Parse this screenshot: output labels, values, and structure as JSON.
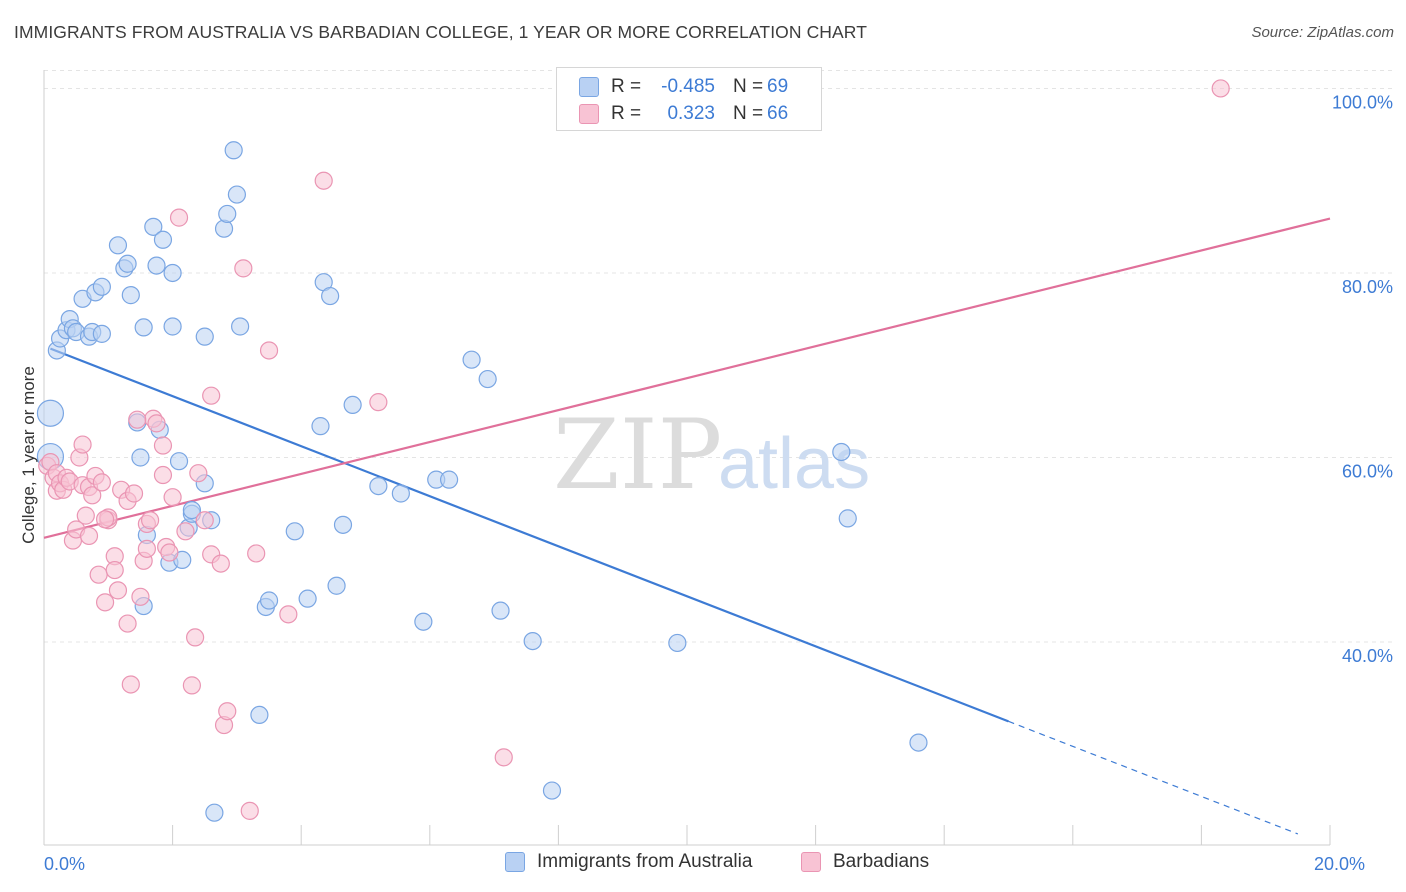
{
  "title": "IMMIGRANTS FROM AUSTRALIA VS BARBADIAN COLLEGE, 1 YEAR OR MORE CORRELATION CHART",
  "source": "Source: ZipAtlas.com",
  "watermark": {
    "zip": "ZIP",
    "atlas": "atlas"
  },
  "colors": {
    "blue": "#3d7bd4",
    "blue_fill": "#b9d1f3",
    "pink": "#e0709a",
    "pink_fill": "#f8c3d4",
    "grid": "#e4e4e4"
  },
  "legend": [
    {
      "r_label": "R =",
      "r_value": "-0.485",
      "n_label": "N =",
      "n_value": "69"
    },
    {
      "r_label": "R =",
      "r_value": "0.323",
      "n_label": "N =",
      "n_value": "66"
    }
  ],
  "series_labels": [
    "Immigrants from Australia",
    "Barbadians"
  ],
  "chart_data": {
    "type": "scatter",
    "xlabel": "",
    "ylabel": "College, 1 year or more",
    "xlim": [
      0,
      20
    ],
    "ylim": [
      18,
      102
    ],
    "x_tick_labels": [
      {
        "value": 0,
        "label": "0.0%"
      },
      {
        "value": 20,
        "label": "20.0%"
      }
    ],
    "y_tick_labels": [
      {
        "value": 40,
        "label": "40.0%"
      },
      {
        "value": 60,
        "label": "60.0%"
      },
      {
        "value": 80,
        "label": "80.0%"
      },
      {
        "value": 100,
        "label": "100.0%"
      }
    ],
    "grid": true,
    "series": [
      {
        "name": "Immigrants from Australia",
        "color": "#3d7bd4",
        "trend": {
          "x0": 0.1,
          "y0": 71.8,
          "x1": 15.0,
          "y1": 31.4,
          "dash_to_x": 19.5,
          "dash_to_y": 19.2
        },
        "points": [
          [
            0.1,
            64.8
          ],
          [
            0.1,
            60.1
          ],
          [
            0.2,
            71.6
          ],
          [
            0.25,
            72.9
          ],
          [
            0.35,
            73.8
          ],
          [
            0.4,
            75.0
          ],
          [
            0.45,
            74.0
          ],
          [
            0.5,
            73.6
          ],
          [
            0.6,
            77.2
          ],
          [
            0.7,
            73.1
          ],
          [
            0.75,
            73.6
          ],
          [
            0.8,
            77.9
          ],
          [
            0.9,
            73.4
          ],
          [
            0.9,
            78.5
          ],
          [
            1.15,
            83.0
          ],
          [
            1.25,
            80.5
          ],
          [
            1.3,
            81.0
          ],
          [
            1.35,
            77.6
          ],
          [
            1.45,
            63.8
          ],
          [
            1.6,
            51.6
          ],
          [
            1.5,
            60.0
          ],
          [
            1.55,
            43.9
          ],
          [
            1.55,
            74.1
          ],
          [
            1.7,
            85.0
          ],
          [
            1.75,
            80.8
          ],
          [
            1.8,
            63.0
          ],
          [
            1.85,
            83.6
          ],
          [
            1.95,
            48.6
          ],
          [
            2.0,
            74.2
          ],
          [
            2.0,
            80.0
          ],
          [
            2.1,
            59.6
          ],
          [
            2.15,
            48.9
          ],
          [
            2.25,
            52.4
          ],
          [
            2.3,
            53.9
          ],
          [
            2.3,
            54.3
          ],
          [
            2.5,
            57.2
          ],
          [
            2.5,
            73.1
          ],
          [
            2.6,
            53.2
          ],
          [
            2.8,
            84.8
          ],
          [
            2.85,
            86.4
          ],
          [
            2.95,
            93.3
          ],
          [
            3.0,
            88.5
          ],
          [
            3.05,
            74.2
          ],
          [
            3.35,
            32.1
          ],
          [
            3.45,
            43.8
          ],
          [
            3.5,
            44.5
          ],
          [
            3.9,
            52.0
          ],
          [
            4.1,
            44.7
          ],
          [
            4.3,
            63.4
          ],
          [
            4.35,
            79.0
          ],
          [
            4.45,
            77.5
          ],
          [
            4.55,
            46.1
          ],
          [
            4.65,
            52.7
          ],
          [
            4.8,
            65.7
          ],
          [
            5.2,
            56.9
          ],
          [
            5.55,
            56.1
          ],
          [
            5.9,
            42.2
          ],
          [
            6.1,
            57.6
          ],
          [
            6.3,
            57.6
          ],
          [
            6.65,
            70.6
          ],
          [
            6.9,
            68.5
          ],
          [
            7.1,
            43.4
          ],
          [
            7.6,
            40.1
          ],
          [
            7.9,
            23.9
          ],
          [
            9.85,
            39.9
          ],
          [
            12.4,
            60.6
          ],
          [
            12.5,
            53.4
          ],
          [
            13.6,
            29.1
          ],
          [
            2.65,
            21.5
          ]
        ]
      },
      {
        "name": "Barbadians",
        "color": "#e0709a",
        "trend": {
          "x0": 0.0,
          "y0": 51.3,
          "x1": 20.0,
          "y1": 85.9
        },
        "points": [
          [
            0.05,
            59.1
          ],
          [
            0.1,
            59.5
          ],
          [
            0.15,
            57.8
          ],
          [
            0.2,
            56.4
          ],
          [
            0.2,
            58.3
          ],
          [
            0.25,
            57.2
          ],
          [
            0.3,
            56.5
          ],
          [
            0.35,
            57.8
          ],
          [
            0.4,
            57.4
          ],
          [
            0.45,
            51.0
          ],
          [
            0.5,
            52.2
          ],
          [
            0.55,
            60.0
          ],
          [
            0.6,
            61.4
          ],
          [
            0.6,
            57.0
          ],
          [
            0.65,
            53.7
          ],
          [
            0.7,
            51.5
          ],
          [
            0.7,
            56.8
          ],
          [
            0.75,
            55.9
          ],
          [
            0.8,
            58.0
          ],
          [
            0.85,
            47.3
          ],
          [
            0.9,
            57.3
          ],
          [
            0.95,
            44.3
          ],
          [
            1.0,
            53.2
          ],
          [
            1.0,
            53.5
          ],
          [
            1.1,
            49.3
          ],
          [
            1.1,
            47.8
          ],
          [
            1.15,
            45.6
          ],
          [
            1.2,
            56.5
          ],
          [
            1.3,
            42.0
          ],
          [
            1.3,
            55.3
          ],
          [
            1.35,
            35.4
          ],
          [
            1.4,
            56.1
          ],
          [
            1.5,
            44.9
          ],
          [
            1.55,
            48.8
          ],
          [
            1.6,
            50.1
          ],
          [
            1.6,
            52.8
          ],
          [
            1.65,
            53.2
          ],
          [
            1.7,
            64.2
          ],
          [
            1.75,
            63.7
          ],
          [
            1.85,
            58.1
          ],
          [
            1.85,
            61.3
          ],
          [
            1.9,
            50.3
          ],
          [
            1.95,
            49.7
          ],
          [
            2.0,
            55.7
          ],
          [
            2.1,
            86.0
          ],
          [
            2.2,
            52.0
          ],
          [
            2.3,
            35.3
          ],
          [
            2.35,
            40.5
          ],
          [
            2.4,
            58.3
          ],
          [
            2.5,
            53.2
          ],
          [
            2.6,
            66.7
          ],
          [
            2.6,
            49.5
          ],
          [
            2.75,
            48.5
          ],
          [
            2.8,
            31.0
          ],
          [
            2.85,
            32.5
          ],
          [
            3.1,
            80.5
          ],
          [
            3.2,
            21.7
          ],
          [
            3.3,
            49.6
          ],
          [
            3.5,
            71.6
          ],
          [
            3.8,
            43.0
          ],
          [
            4.35,
            90.0
          ],
          [
            5.2,
            66.0
          ],
          [
            7.15,
            27.5
          ],
          [
            18.3,
            100.0
          ],
          [
            1.45,
            64.1
          ],
          [
            0.95,
            53.3
          ]
        ]
      }
    ]
  }
}
